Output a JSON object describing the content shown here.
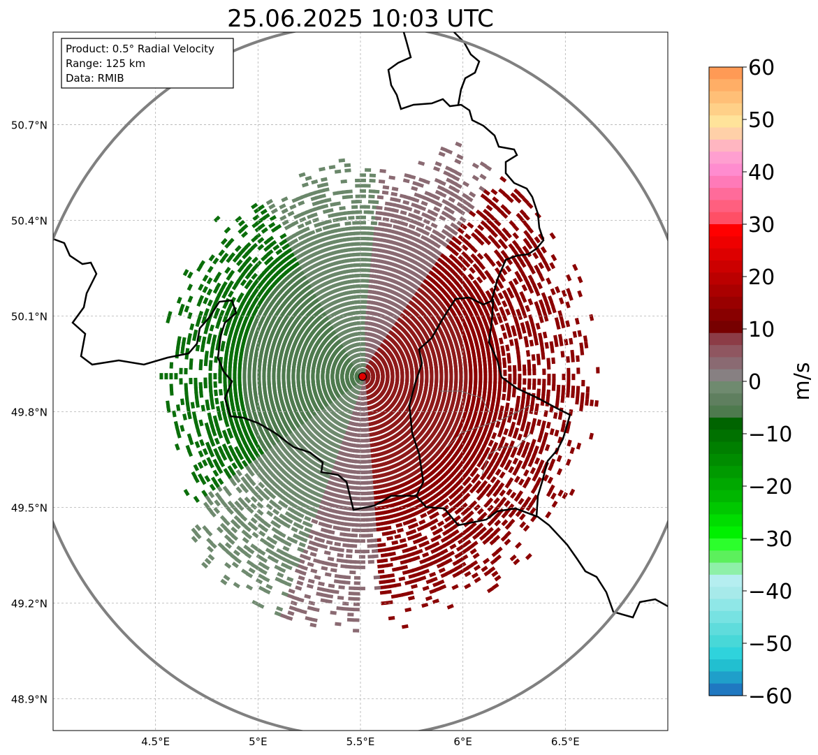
{
  "title": "25.06.2025 10:03 UTC",
  "info_box": {
    "line1": "Product: 0.5° Radial Velocity",
    "line2": "Range: 125 km",
    "line3": "Data: RMIB"
  },
  "lat_labels": [
    "50.7°N",
    "50.4°N",
    "50.1°N",
    "49.8°N",
    "49.5°N",
    "49.2°N",
    "48.9°N"
  ],
  "lon_labels": [
    "4.5°E",
    "5°E",
    "5.5°E",
    "6°E",
    "6.5°E"
  ],
  "map": {
    "lon_range": [
      4.0,
      7.0
    ],
    "lat_range": [
      48.8,
      50.99
    ],
    "radar_site": {
      "lon": 5.51,
      "lat": 49.91
    },
    "range_km": 125
  },
  "colorbar": {
    "label": "m/s",
    "ticks": [
      "60",
      "50",
      "40",
      "30",
      "20",
      "10",
      "0",
      "−10",
      "−20",
      "−30",
      "−40",
      "−50",
      "−60"
    ],
    "vmin": -60,
    "vmax": 60,
    "colors_top_to_bottom": [
      "#ff9a55",
      "#ffae66",
      "#ffbf77",
      "#ffd088",
      "#ffe39a",
      "#ffd0a8",
      "#ffb6c1",
      "#ff9fd0",
      "#ff8ccf",
      "#ff7ab8",
      "#ff6b9a",
      "#ff5f7f",
      "#ff4f66",
      "#ff0000",
      "#ee0000",
      "#dd0000",
      "#cc0000",
      "#bb0000",
      "#aa0000",
      "#990000",
      "#880000",
      "#770000",
      "#8c3c46",
      "#8f5660",
      "#8a6a72",
      "#878082",
      "#6f8a6f",
      "#5f7f5f",
      "#4e7a4e",
      "#006400",
      "#007100",
      "#007f00",
      "#008c00",
      "#009a00",
      "#00a800",
      "#00b600",
      "#00c800",
      "#00dd00",
      "#00f000",
      "#2cff2c",
      "#5cf05c",
      "#8ef0a8",
      "#b5eef0",
      "#a7eaea",
      "#8fe7e7",
      "#77e2e2",
      "#5fdcdc",
      "#48d8d8",
      "#2fd3dc",
      "#22bfd0",
      "#1f9fca",
      "#1f78c1"
    ],
    "colors_hex_legend": {
      "negative": "#006400",
      "zero": "#878082",
      "positive": "#8b0000"
    }
  }
}
